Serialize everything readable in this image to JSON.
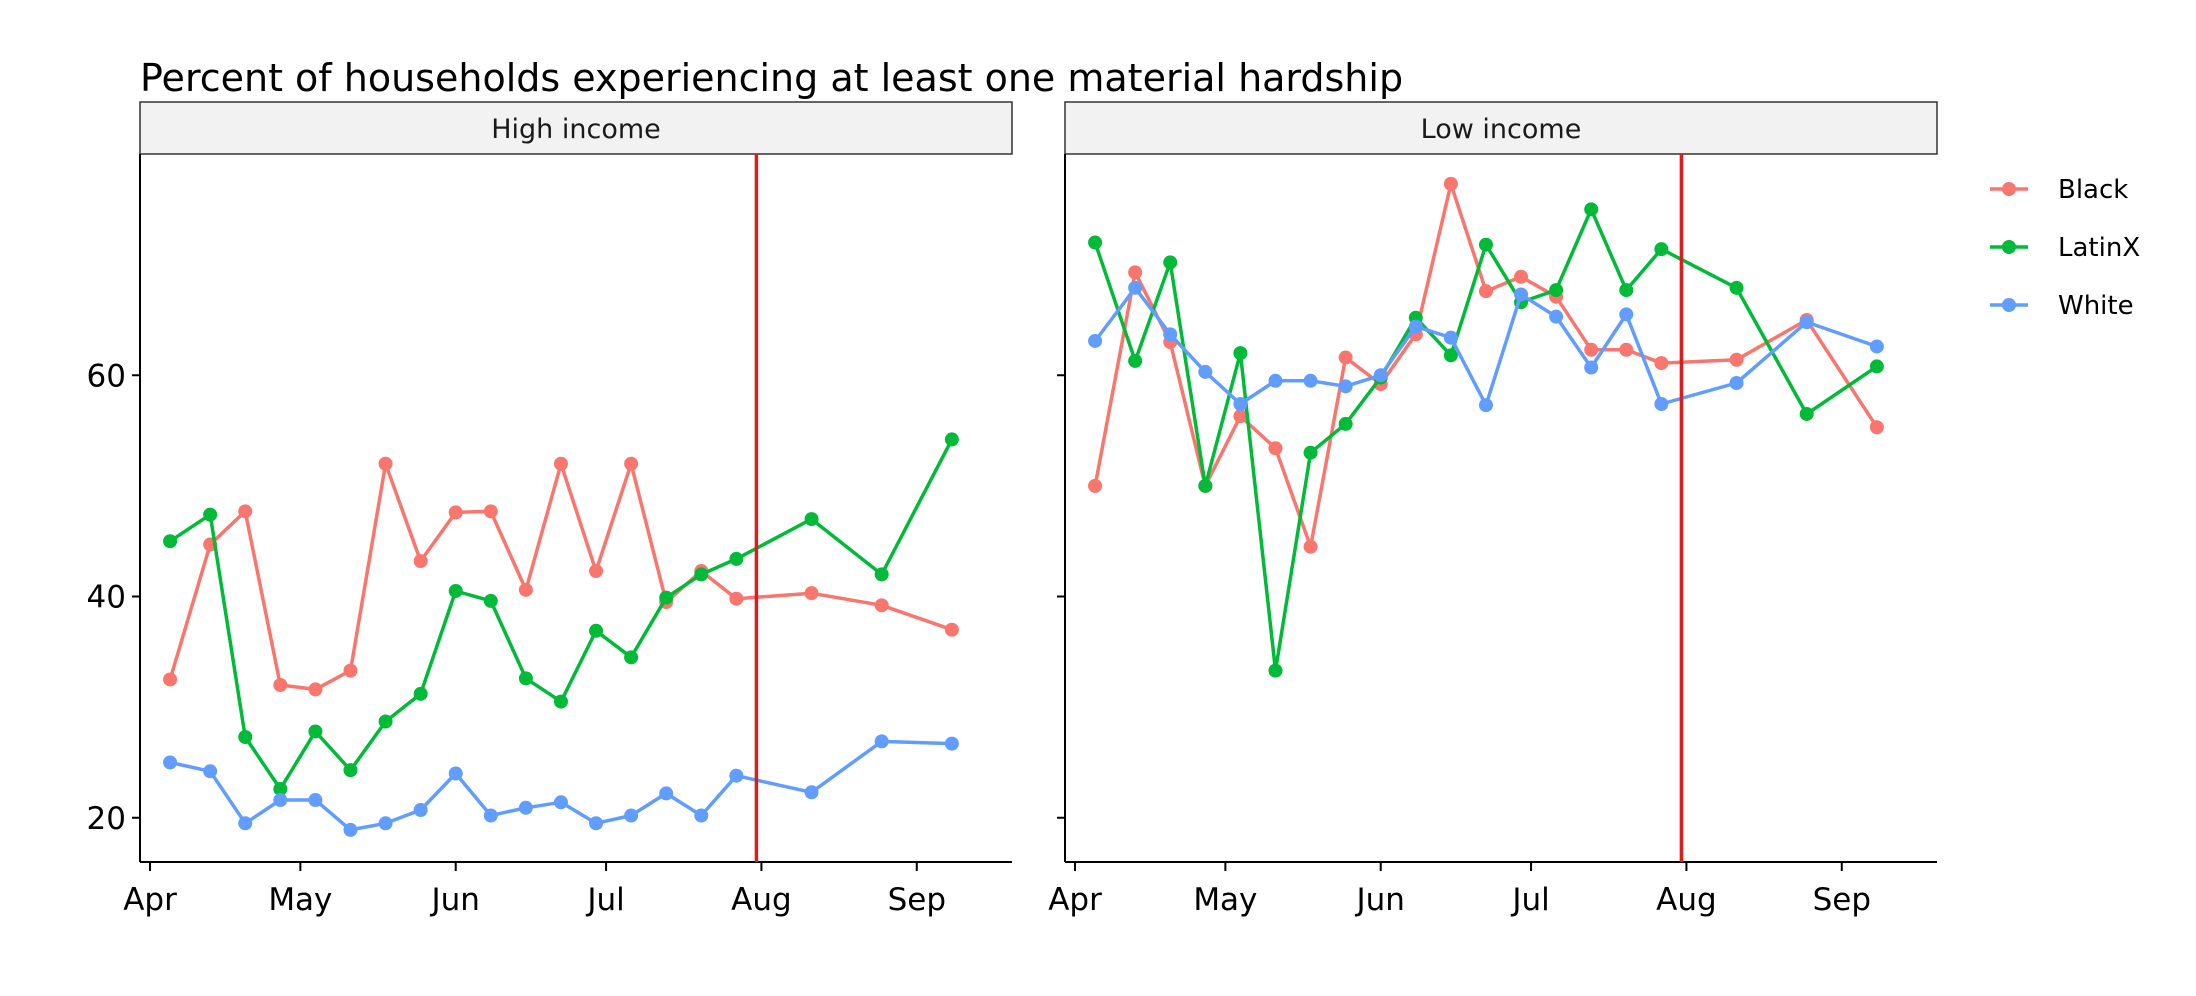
{
  "chart_data": {
    "type": "line",
    "title": "Percent of households experiencing at least one material hardship",
    "xlabel": "",
    "ylabel": "",
    "ylim": [
      16,
      80
    ],
    "y_ticks": [
      20,
      40,
      60
    ],
    "x_range": [
      "2020-03-30",
      "2020-09-20"
    ],
    "x_ticks": [
      {
        "date": "2020-04-01",
        "label": "Apr"
      },
      {
        "date": "2020-05-01",
        "label": "May"
      },
      {
        "date": "2020-06-01",
        "label": "Jun"
      },
      {
        "date": "2020-07-01",
        "label": "Jul"
      },
      {
        "date": "2020-08-01",
        "label": "Aug"
      },
      {
        "date": "2020-09-01",
        "label": "Sep"
      }
    ],
    "reference_line": {
      "date": "2020-07-31",
      "color": "#dd1c1c"
    },
    "legend_position": "right",
    "grid": false,
    "panels": [
      {
        "name": "High income",
        "series": [
          {
            "name": "Black",
            "color": "#F8766D",
            "points": [
              [
                "2020-04-05",
                32.5
              ],
              [
                "2020-04-13",
                44.7
              ],
              [
                "2020-04-20",
                47.7
              ],
              [
                "2020-04-27",
                32.0
              ],
              [
                "2020-05-04",
                31.6
              ],
              [
                "2020-05-11",
                33.3
              ],
              [
                "2020-05-18",
                52.0
              ],
              [
                "2020-05-25",
                43.2
              ],
              [
                "2020-06-01",
                47.6
              ],
              [
                "2020-06-08",
                47.7
              ],
              [
                "2020-06-15",
                40.6
              ],
              [
                "2020-06-22",
                52.0
              ],
              [
                "2020-06-29",
                42.3
              ],
              [
                "2020-07-06",
                52.0
              ],
              [
                "2020-07-13",
                39.5
              ],
              [
                "2020-07-20",
                42.3
              ],
              [
                "2020-07-27",
                39.8
              ],
              [
                "2020-08-11",
                40.3
              ],
              [
                "2020-08-25",
                39.2
              ],
              [
                "2020-09-08",
                37.0
              ]
            ]
          },
          {
            "name": "LatinX",
            "color": "#00BA38",
            "points": [
              [
                "2020-04-05",
                45.0
              ],
              [
                "2020-04-13",
                47.4
              ],
              [
                "2020-04-20",
                27.3
              ],
              [
                "2020-04-27",
                22.6
              ],
              [
                "2020-05-04",
                27.8
              ],
              [
                "2020-05-11",
                24.3
              ],
              [
                "2020-05-18",
                28.7
              ],
              [
                "2020-05-25",
                31.2
              ],
              [
                "2020-06-01",
                40.5
              ],
              [
                "2020-06-08",
                39.6
              ],
              [
                "2020-06-15",
                32.6
              ],
              [
                "2020-06-22",
                30.5
              ],
              [
                "2020-06-29",
                36.9
              ],
              [
                "2020-07-06",
                34.5
              ],
              [
                "2020-07-13",
                39.9
              ],
              [
                "2020-07-20",
                42.0
              ],
              [
                "2020-07-27",
                43.4
              ],
              [
                "2020-08-11",
                47.0
              ],
              [
                "2020-08-25",
                42.0
              ],
              [
                "2020-09-08",
                54.2
              ]
            ]
          },
          {
            "name": "White",
            "color": "#619CFF",
            "points": [
              [
                "2020-04-05",
                25.0
              ],
              [
                "2020-04-13",
                24.2
              ],
              [
                "2020-04-20",
                19.5
              ],
              [
                "2020-04-27",
                21.6
              ],
              [
                "2020-05-04",
                21.6
              ],
              [
                "2020-05-11",
                18.9
              ],
              [
                "2020-05-18",
                19.5
              ],
              [
                "2020-05-25",
                20.7
              ],
              [
                "2020-06-01",
                24.0
              ],
              [
                "2020-06-08",
                20.2
              ],
              [
                "2020-06-15",
                20.9
              ],
              [
                "2020-06-22",
                21.4
              ],
              [
                "2020-06-29",
                19.5
              ],
              [
                "2020-07-06",
                20.2
              ],
              [
                "2020-07-13",
                22.2
              ],
              [
                "2020-07-20",
                20.2
              ],
              [
                "2020-07-27",
                23.8
              ],
              [
                "2020-08-11",
                22.3
              ],
              [
                "2020-08-25",
                26.9
              ],
              [
                "2020-09-08",
                26.7
              ]
            ]
          }
        ]
      },
      {
        "name": "Low income",
        "series": [
          {
            "name": "Black",
            "color": "#F8766D",
            "points": [
              [
                "2020-04-05",
                50.0
              ],
              [
                "2020-04-13",
                69.3
              ],
              [
                "2020-04-20",
                63.0
              ],
              [
                "2020-04-27",
                50.0
              ],
              [
                "2020-05-04",
                56.3
              ],
              [
                "2020-05-11",
                53.4
              ],
              [
                "2020-05-18",
                44.5
              ],
              [
                "2020-05-25",
                61.6
              ],
              [
                "2020-06-01",
                59.2
              ],
              [
                "2020-06-08",
                63.7
              ],
              [
                "2020-06-15",
                77.3
              ],
              [
                "2020-06-22",
                67.6
              ],
              [
                "2020-06-29",
                68.9
              ],
              [
                "2020-07-06",
                67.1
              ],
              [
                "2020-07-13",
                62.3
              ],
              [
                "2020-07-20",
                62.3
              ],
              [
                "2020-07-27",
                61.1
              ],
              [
                "2020-08-11",
                61.4
              ],
              [
                "2020-08-25",
                65.0
              ],
              [
                "2020-09-08",
                55.3
              ]
            ]
          },
          {
            "name": "LatinX",
            "color": "#00BA38",
            "points": [
              [
                "2020-04-05",
                72.0
              ],
              [
                "2020-04-13",
                61.3
              ],
              [
                "2020-04-20",
                70.2
              ],
              [
                "2020-04-27",
                50.0
              ],
              [
                "2020-05-04",
                62.0
              ],
              [
                "2020-05-11",
                33.3
              ],
              [
                "2020-05-18",
                53.0
              ],
              [
                "2020-05-25",
                55.6
              ],
              [
                "2020-06-01",
                59.8
              ],
              [
                "2020-06-08",
                65.2
              ],
              [
                "2020-06-15",
                61.8
              ],
              [
                "2020-06-22",
                71.8
              ],
              [
                "2020-06-29",
                66.6
              ],
              [
                "2020-07-06",
                67.7
              ],
              [
                "2020-07-13",
                75.0
              ],
              [
                "2020-07-20",
                67.7
              ],
              [
                "2020-07-27",
                71.4
              ],
              [
                "2020-08-11",
                67.9
              ],
              [
                "2020-08-25",
                56.5
              ],
              [
                "2020-09-08",
                60.8
              ]
            ]
          },
          {
            "name": "White",
            "color": "#619CFF",
            "points": [
              [
                "2020-04-05",
                63.1
              ],
              [
                "2020-04-13",
                67.9
              ],
              [
                "2020-04-20",
                63.7
              ],
              [
                "2020-04-27",
                60.3
              ],
              [
                "2020-05-04",
                57.4
              ],
              [
                "2020-05-11",
                59.5
              ],
              [
                "2020-05-18",
                59.5
              ],
              [
                "2020-05-25",
                59.0
              ],
              [
                "2020-06-01",
                60.0
              ],
              [
                "2020-06-08",
                64.4
              ],
              [
                "2020-06-15",
                63.4
              ],
              [
                "2020-06-22",
                57.3
              ],
              [
                "2020-06-29",
                67.3
              ],
              [
                "2020-07-06",
                65.3
              ],
              [
                "2020-07-13",
                60.7
              ],
              [
                "2020-07-20",
                65.5
              ],
              [
                "2020-07-27",
                57.4
              ],
              [
                "2020-08-11",
                59.3
              ],
              [
                "2020-08-25",
                64.8
              ],
              [
                "2020-09-08",
                62.6
              ]
            ]
          }
        ]
      }
    ]
  }
}
